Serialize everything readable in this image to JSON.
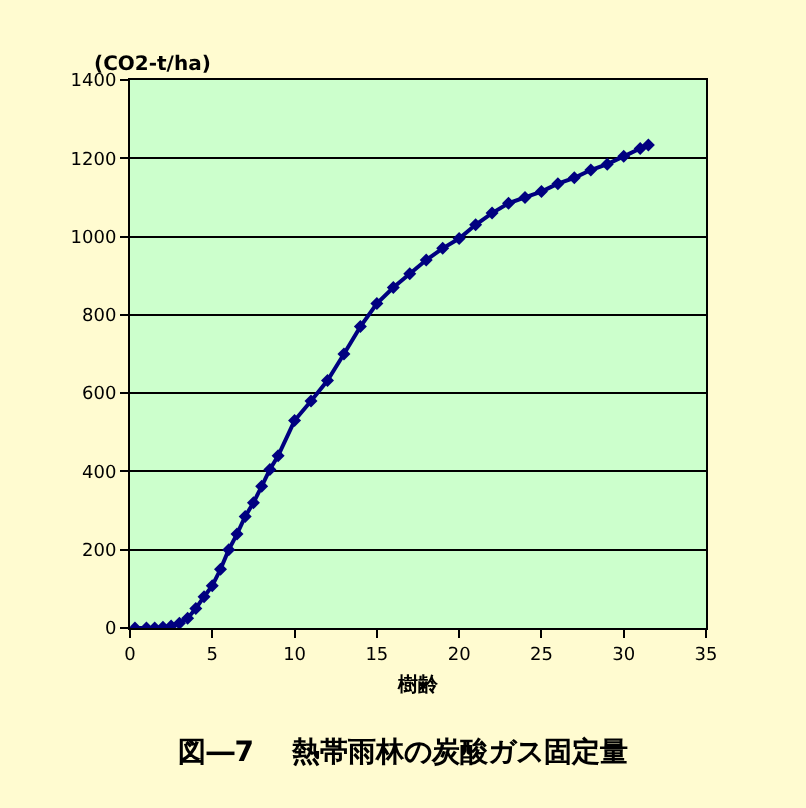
{
  "chart_data": {
    "type": "line",
    "title": "図―7　 熱帯雨林の炭酸ガス固定量",
    "xlabel": "樹齢",
    "ylabel": "(CO2-t/ha)",
    "x": [
      0.3,
      1,
      1.5,
      2,
      2.5,
      3,
      3.5,
      4,
      4.5,
      5,
      5.5,
      6,
      6.5,
      7,
      7.5,
      8,
      8.5,
      9,
      10,
      11,
      12,
      13,
      14,
      15,
      16,
      17,
      18,
      19,
      20,
      21,
      22,
      23,
      24,
      25,
      26,
      27,
      28,
      29,
      30,
      31,
      31.5
    ],
    "series": [
      {
        "color": "#000080",
        "values": [
          0,
          0,
          0,
          2,
          5,
          12,
          25,
          50,
          80,
          108,
          150,
          200,
          240,
          285,
          320,
          362,
          405,
          440,
          530,
          580,
          632,
          700,
          770,
          829,
          870,
          905,
          940,
          970,
          995,
          1030,
          1060,
          1085,
          1100,
          1115,
          1135,
          1150,
          1170,
          1185,
          1205,
          1225,
          1234
        ]
      }
    ],
    "xlim": [
      0,
      35
    ],
    "xticks": [
      0,
      5,
      10,
      15,
      20,
      25,
      30,
      35
    ],
    "ylim": [
      0,
      1400
    ],
    "yticks": [
      0,
      200,
      400,
      600,
      800,
      1000,
      1200,
      1400
    ],
    "grid": "y",
    "marker": "diamond",
    "line_style": "solid"
  }
}
